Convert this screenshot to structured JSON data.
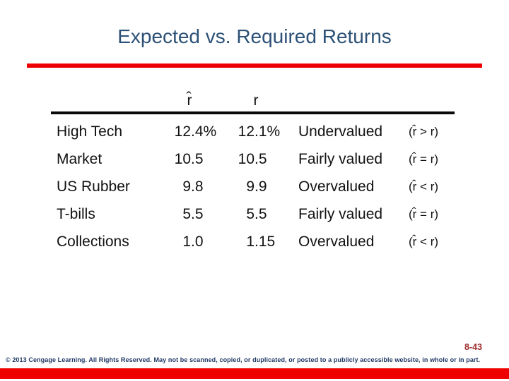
{
  "title": "Expected vs. Required Returns",
  "table": {
    "col_rhat": "r̂",
    "col_r": "r",
    "rows": [
      {
        "name": "High Tech",
        "r_hat": "12.4%",
        "r": "12.1%",
        "valuation": "Undervalued",
        "formula": "(r̂ > r)"
      },
      {
        "name": "Market",
        "r_hat": "10.5",
        "r": "10.5",
        "valuation": "Fairly valued",
        "formula": "(r̂ = r)"
      },
      {
        "name": "US Rubber",
        "r_hat": "9.8",
        "r": "9.9",
        "valuation": "Overvalued",
        "formula": "(r̂ < r)"
      },
      {
        "name": "T-bills",
        "r_hat": "5.5",
        "r": "5.5",
        "valuation": "Fairly valued",
        "formula": "(r̂ = r)"
      },
      {
        "name": "Collections",
        "r_hat": "1.0",
        "r": "1.15",
        "valuation": "Overvalued",
        "formula": "(r̂ < r)"
      }
    ]
  },
  "footer": {
    "page_number": "8-43",
    "copyright": "© 2013 Cengage Learning. All Rights Reserved. May not be scanned, copied, or duplicated, or posted to a publicly accessible website, in whole or in part."
  },
  "colors": {
    "title_blue": "#2d5176",
    "accent_red": "#ee0000",
    "page_number_red": "#9e2b2b",
    "copyright_navy": "#1f3864",
    "table_text": "#111111"
  }
}
